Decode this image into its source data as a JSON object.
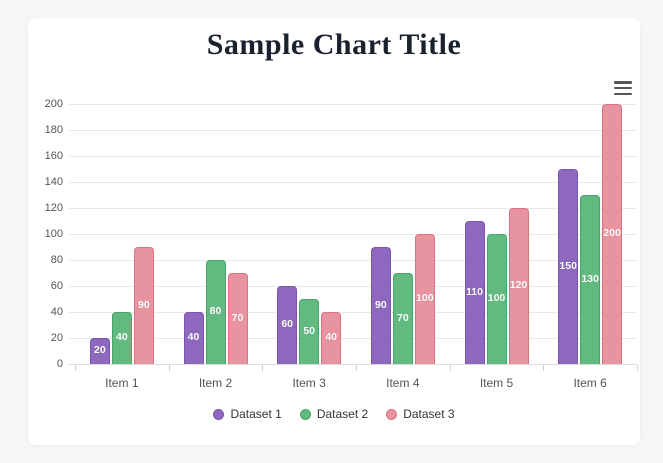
{
  "page": {
    "background_color": "#f6f6f6",
    "card_background_color": "#ffffff"
  },
  "toolbar": {
    "menu_icon": "hamburger-menu-icon"
  },
  "chart_data": {
    "type": "bar",
    "title": "Sample Chart Title",
    "title_color": "#1b222e",
    "categories": [
      "Item 1",
      "Item 2",
      "Item 3",
      "Item 4",
      "Item 5",
      "Item 6"
    ],
    "series": [
      {
        "name": "Dataset 1",
        "color": "#8d68be",
        "border_color": "#7a55ab",
        "values": [
          20,
          40,
          60,
          90,
          110,
          150
        ]
      },
      {
        "name": "Dataset 2",
        "color": "#62ba81",
        "border_color": "#47a56c",
        "values": [
          40,
          80,
          50,
          70,
          100,
          130
        ]
      },
      {
        "name": "Dataset 3",
        "color": "#e894a0",
        "border_color": "#dd7280",
        "values": [
          90,
          70,
          40,
          100,
          120,
          200
        ]
      }
    ],
    "xlabel": "",
    "ylabel": "",
    "ylim": [
      0,
      200
    ],
    "ytick_step": 20,
    "grid": true,
    "legend_position": "bottom",
    "value_labels": "inside-center-white"
  }
}
